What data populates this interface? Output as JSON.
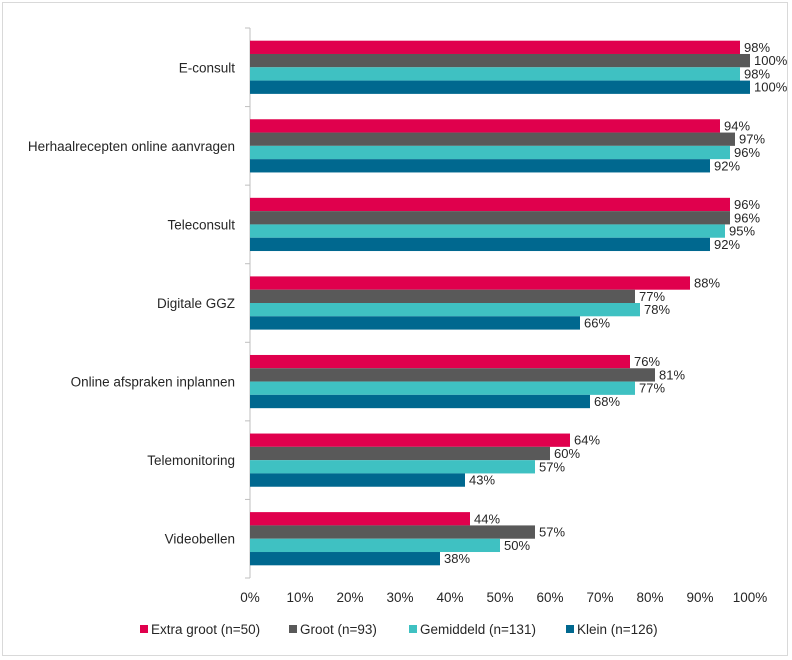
{
  "chart_data": {
    "type": "bar",
    "orientation": "horizontal",
    "categories": [
      "E-consult",
      "Herhaalrecepten online aanvragen",
      "Teleconsult",
      "Digitale GGZ",
      "Online afspraken inplannen",
      "Telemonitoring",
      "Videobellen"
    ],
    "series": [
      {
        "name": "Extra groot (n=50)",
        "color": "#e0004d",
        "values": [
          98,
          94,
          96,
          88,
          76,
          64,
          44
        ]
      },
      {
        "name": "Groot (n=93)",
        "color": "#595959",
        "values": [
          100,
          97,
          96,
          77,
          81,
          60,
          57
        ]
      },
      {
        "name": "Gemiddeld (n=131)",
        "color": "#3fc1c2",
        "values": [
          98,
          96,
          95,
          78,
          77,
          57,
          50
        ]
      },
      {
        "name": "Klein (n=126)",
        "color": "#00688f",
        "values": [
          100,
          92,
          92,
          66,
          68,
          43,
          38
        ]
      }
    ],
    "xlim": [
      0,
      100
    ],
    "xticks": [
      "0%",
      "10%",
      "20%",
      "30%",
      "40%",
      "50%",
      "60%",
      "70%",
      "80%",
      "90%",
      "100%"
    ],
    "value_suffix": "%",
    "legend_position": "bottom",
    "grid": false
  }
}
